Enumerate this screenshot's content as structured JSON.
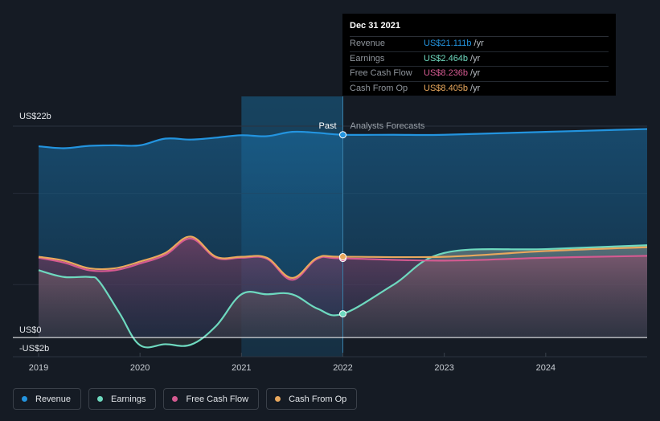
{
  "chart_data": {
    "type": "area",
    "x_ticks": [
      "2019",
      "2020",
      "2021",
      "2022",
      "2023",
      "2024"
    ],
    "x_range": [
      2019.0,
      2025.0
    ],
    "y_ticks": [
      {
        "value": 22,
        "label": "US$22b"
      },
      {
        "value": 0,
        "label": "US$0"
      },
      {
        "value": -2,
        "label": "-US$2b"
      }
    ],
    "ylim": [
      -2,
      23
    ],
    "divider": {
      "x": 2022.0,
      "past_label": "Past",
      "forecast_label": "Analysts Forecasts"
    },
    "series": [
      {
        "name": "Revenue",
        "color": "#2394df",
        "fill": true,
        "points": [
          [
            2019.0,
            19.9
          ],
          [
            2019.25,
            19.7
          ],
          [
            2019.5,
            19.95
          ],
          [
            2019.75,
            20.0
          ],
          [
            2020.0,
            20.0
          ],
          [
            2020.25,
            20.7
          ],
          [
            2020.5,
            20.6
          ],
          [
            2020.75,
            20.8
          ],
          [
            2021.0,
            21.05
          ],
          [
            2021.25,
            20.95
          ],
          [
            2021.5,
            21.4
          ],
          [
            2021.75,
            21.3
          ],
          [
            2022.0,
            21.1
          ],
          [
            2022.5,
            21.1
          ],
          [
            2023.0,
            21.1
          ],
          [
            2024.0,
            21.4
          ],
          [
            2025.0,
            21.7
          ]
        ]
      },
      {
        "name": "Earnings",
        "color": "#6ed9bf",
        "fill": true,
        "points": [
          [
            2019.0,
            7.0
          ],
          [
            2019.25,
            6.3
          ],
          [
            2019.5,
            6.3
          ],
          [
            2019.6,
            5.8
          ],
          [
            2019.8,
            2.5
          ],
          [
            2020.0,
            -0.8
          ],
          [
            2020.25,
            -0.7
          ],
          [
            2020.5,
            -0.75
          ],
          [
            2020.75,
            1.2
          ],
          [
            2021.0,
            4.5
          ],
          [
            2021.25,
            4.5
          ],
          [
            2021.5,
            4.5
          ],
          [
            2021.75,
            3.0
          ],
          [
            2022.0,
            2.464
          ],
          [
            2022.5,
            5.5
          ],
          [
            2023.0,
            8.8
          ],
          [
            2024.0,
            9.2
          ],
          [
            2025.0,
            9.6
          ]
        ]
      },
      {
        "name": "Free Cash Flow",
        "color": "#d55a91",
        "fill": true,
        "points": [
          [
            2019.0,
            8.3
          ],
          [
            2019.25,
            7.8
          ],
          [
            2019.5,
            7.0
          ],
          [
            2019.75,
            7.0
          ],
          [
            2020.0,
            7.7
          ],
          [
            2020.25,
            8.6
          ],
          [
            2020.5,
            10.3
          ],
          [
            2020.75,
            8.3
          ],
          [
            2021.0,
            8.3
          ],
          [
            2021.25,
            8.2
          ],
          [
            2021.5,
            6.0
          ],
          [
            2021.75,
            8.2
          ],
          [
            2022.0,
            8.236
          ],
          [
            2023.0,
            8.0
          ],
          [
            2024.0,
            8.3
          ],
          [
            2025.0,
            8.5
          ]
        ]
      },
      {
        "name": "Cash From Op",
        "color": "#e9a85d",
        "fill": false,
        "points": [
          [
            2019.0,
            8.4
          ],
          [
            2019.25,
            8.0
          ],
          [
            2019.5,
            7.2
          ],
          [
            2019.75,
            7.2
          ],
          [
            2020.0,
            7.9
          ],
          [
            2020.25,
            8.8
          ],
          [
            2020.5,
            10.5
          ],
          [
            2020.75,
            8.4
          ],
          [
            2021.0,
            8.4
          ],
          [
            2021.25,
            8.3
          ],
          [
            2021.5,
            6.2
          ],
          [
            2021.75,
            8.3
          ],
          [
            2022.0,
            8.405
          ],
          [
            2023.0,
            8.4
          ],
          [
            2024.0,
            9.0
          ],
          [
            2025.0,
            9.4
          ]
        ]
      }
    ]
  },
  "tooltip": {
    "date": "Dec 31 2021",
    "rows": [
      {
        "name": "Revenue",
        "value": "US$21.111b",
        "unit": "/yr",
        "color": "#2394df"
      },
      {
        "name": "Earnings",
        "value": "US$2.464b",
        "unit": "/yr",
        "color": "#6ed9bf"
      },
      {
        "name": "Free Cash Flow",
        "value": "US$8.236b",
        "unit": "/yr",
        "color": "#d55a91"
      },
      {
        "name": "Cash From Op",
        "value": "US$8.405b",
        "unit": "/yr",
        "color": "#e9a85d"
      }
    ]
  },
  "legend": [
    {
      "label": "Revenue",
      "color": "#2394df"
    },
    {
      "label": "Earnings",
      "color": "#6ed9bf"
    },
    {
      "label": "Free Cash Flow",
      "color": "#d55a91"
    },
    {
      "label": "Cash From Op",
      "color": "#e9a85d"
    }
  ]
}
